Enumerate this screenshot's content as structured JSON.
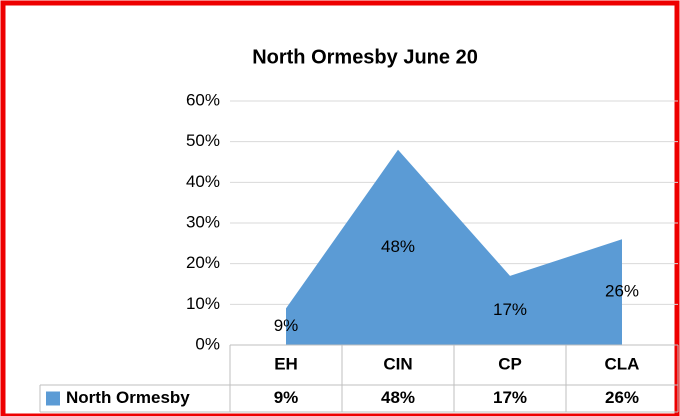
{
  "chart_data": {
    "type": "area",
    "title": "North Ormesby June 20",
    "categories": [
      "EH",
      "CIN",
      "CP",
      "CLA"
    ],
    "series": [
      {
        "name": "North Ormesby",
        "color": "#5b9bd5",
        "values": [
          9,
          48,
          17,
          26
        ],
        "value_labels": [
          "9%",
          "48%",
          "17%",
          "26%"
        ]
      }
    ],
    "ylim": [
      0,
      60
    ],
    "yticks": [
      {
        "value": 0,
        "label": "0%"
      },
      {
        "value": 10,
        "label": "10%"
      },
      {
        "value": 20,
        "label": "20%"
      },
      {
        "value": 30,
        "label": "30%"
      },
      {
        "value": 40,
        "label": "40%"
      },
      {
        "value": 50,
        "label": "50%"
      },
      {
        "value": 60,
        "label": "60%"
      }
    ],
    "grid": true
  }
}
